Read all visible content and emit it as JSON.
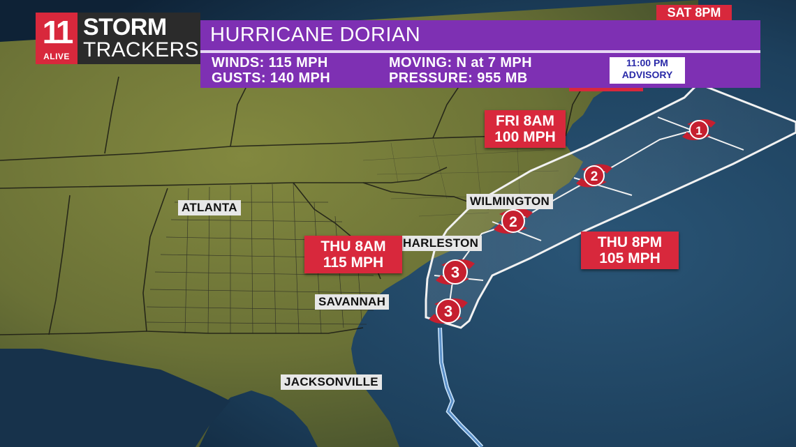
{
  "header": {
    "logo_number": "11",
    "logo_sub": "ALIVE",
    "brand_line1": "STORM",
    "brand_line2": "TRACKERS",
    "title": "HURRICANE DORIAN",
    "winds": "WINDS: 115 MPH",
    "gusts": "GUSTS: 140 MPH",
    "moving": "MOVING: N at 7 MPH",
    "pressure": "PRESSURE: 955 MB",
    "advisory_time": "11:00 PM",
    "advisory_label": "ADVISORY",
    "top_tag": "SAT 8PM"
  },
  "cities": {
    "atlanta": "ATLANTA",
    "wilmington": "WILMINGTON",
    "charleston": "HARLESTON",
    "savannah": "SAVANNAH",
    "jacksonville": "JACKSONVILLE"
  },
  "forecast_points": [
    {
      "time": "FRI 8AM",
      "wind": "100 MPH"
    },
    {
      "time": "THU 8AM",
      "wind": "115 MPH"
    },
    {
      "time": "THU 8PM",
      "wind": "105 MPH"
    }
  ],
  "storm_icons": [
    {
      "category": "3"
    },
    {
      "category": "3"
    },
    {
      "category": "2"
    },
    {
      "category": "2"
    },
    {
      "category": "1"
    }
  ],
  "colors": {
    "banner": "#7e30b3",
    "forecast_label": "#d8283c",
    "storm_icon": "#c61f2f",
    "land": "#6f7a3c",
    "ocean": "#1f4766"
  }
}
